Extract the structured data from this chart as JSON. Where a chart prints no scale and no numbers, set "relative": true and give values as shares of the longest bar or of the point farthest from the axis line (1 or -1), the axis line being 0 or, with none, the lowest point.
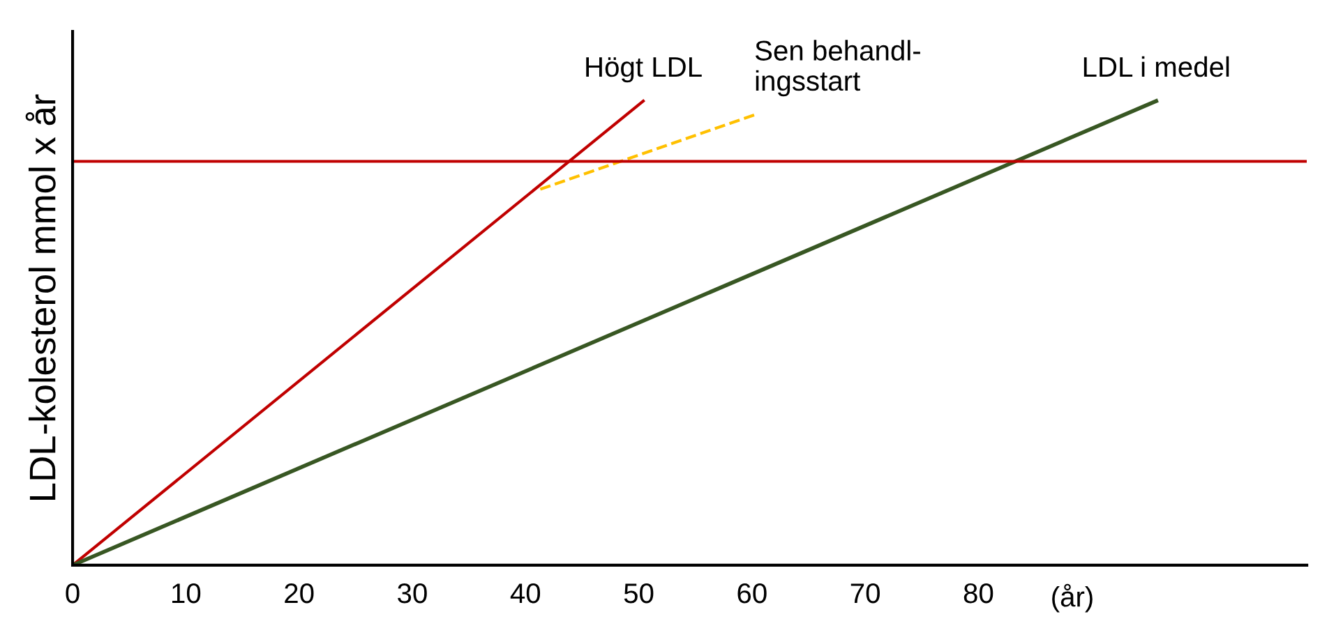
{
  "chart_data": {
    "type": "line",
    "relative": true,
    "ylabel": "LDL-kolesterol mmol x år",
    "xlabel": "(år)",
    "xlim": [
      0,
      109
    ],
    "xticks": [
      0,
      10,
      20,
      30,
      40,
      50,
      60,
      70,
      80
    ],
    "series": [
      {
        "name": "Högt LDL",
        "color": "#c00000",
        "x": [
          0,
          50.4
        ],
        "values": [
          0,
          1
        ]
      },
      {
        "name": "Sen behandl-\ningsstart",
        "color": "#ffc000",
        "x": [
          41.3,
          60.2
        ],
        "values": [
          0.81,
          0.97
        ],
        "line_style": "dashed"
      },
      {
        "name": "LDL i medel",
        "color": "#385723",
        "x": [
          0,
          95.7
        ],
        "values": [
          0,
          1
        ]
      }
    ],
    "ref_lines": [
      {
        "axis": "y",
        "value": 0.87,
        "color": "#c00000"
      }
    ],
    "grid": false,
    "legend": false,
    "tick_labels": "x"
  }
}
